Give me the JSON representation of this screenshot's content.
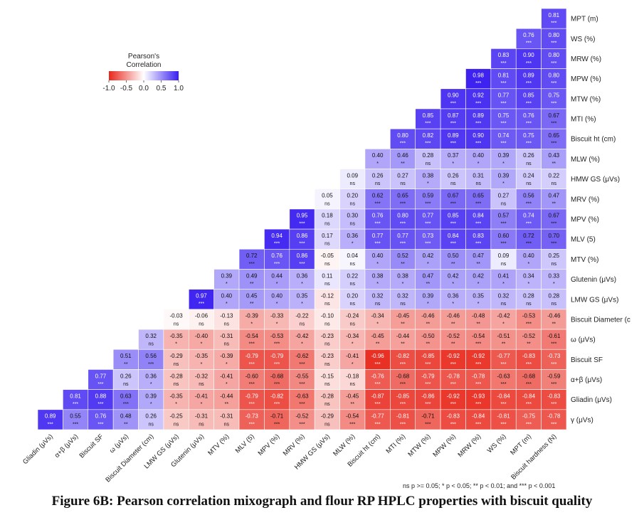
{
  "chart_data": {
    "type": "heatmap",
    "legend": {
      "title_line1": "Pearson's",
      "title_line2": "Correlation",
      "ticks": [
        "-1.0",
        "-0.5",
        "0.0",
        "0.5",
        "1.0"
      ],
      "range": [
        -1,
        1
      ],
      "colors": {
        "negative": "#e8271b",
        "neutral": "#ffffff",
        "positive": "#3a1ff0"
      }
    },
    "row_labels": [
      "MPT (m)",
      "WS (%)",
      "MRW (%)",
      "MPW (%)",
      "MTW (%)",
      "MTI (%)",
      "Biscuit ht (cm)",
      "MLW (%)",
      "HMW GS (μVs)",
      "MRV (%)",
      "MPV (%)",
      "MLV (5)",
      "MTV (%)",
      "Glutenin  (μVs)",
      "LMW GS  (μVs)",
      "Biscuit Diameter (c",
      "ω  (μVs)",
      "Biscuit SF",
      "α+β  (μVs)",
      "Gliadin  (μVs)",
      "γ  (μVs)"
    ],
    "col_labels": [
      "Gliadin  (μVs)",
      "α+β  (μVs)",
      "Biscuit SF",
      "ω  (μVs)",
      "Biscuit Diameter (cm)",
      "LMW GS  (μVs)",
      "Glutenin  (μVs)",
      "MTV (%)",
      "MLV (5)",
      "MPV (%)",
      "MRV (%)",
      "HMW GS (μVs)",
      "MLW (%)",
      "Biscuit ht (cm)",
      "MTI (%)",
      "MTW (%)",
      "MPW (%)",
      "MRW (%)",
      "WS (%)",
      "MPT (m)",
      "Biscuit hardness (N)"
    ],
    "rows": [
      {
        "values": [
          0.81
        ],
        "sig": [
          "***"
        ]
      },
      {
        "values": [
          0.76,
          0.8
        ],
        "sig": [
          "***",
          "***"
        ]
      },
      {
        "values": [
          0.83,
          0.9,
          0.8
        ],
        "sig": [
          "***",
          "***",
          "***"
        ]
      },
      {
        "values": [
          0.98,
          0.81,
          0.89,
          0.8
        ],
        "sig": [
          "***",
          "***",
          "***",
          "***"
        ]
      },
      {
        "values": [
          0.9,
          0.92,
          0.77,
          0.85,
          0.75
        ],
        "sig": [
          "***",
          "***",
          "***",
          "***",
          "***"
        ]
      },
      {
        "values": [
          0.85,
          0.87,
          0.89,
          0.75,
          0.76,
          0.67
        ],
        "sig": [
          "***",
          "***",
          "***",
          "***",
          "***",
          "***"
        ]
      },
      {
        "values": [
          0.8,
          0.82,
          0.89,
          0.9,
          0.74,
          0.75,
          0.65
        ],
        "sig": [
          "***",
          "***",
          "***",
          "***",
          "***",
          "***",
          "***"
        ]
      },
      {
        "values": [
          0.4,
          0.46,
          0.28,
          0.37,
          0.4,
          0.39,
          0.26,
          0.43
        ],
        "sig": [
          "*",
          "**",
          "ns",
          "*",
          "*",
          "*",
          "ns",
          "**"
        ]
      },
      {
        "values": [
          0.09,
          0.26,
          0.27,
          0.38,
          0.26,
          0.31,
          0.39,
          0.24,
          0.22
        ],
        "sig": [
          "ns",
          "ns",
          "ns",
          "*",
          "ns",
          "ns",
          "*",
          "ns",
          "ns"
        ]
      },
      {
        "values": [
          0.05,
          0.2,
          0.62,
          0.65,
          0.59,
          0.67,
          0.65,
          0.27,
          0.56,
          0.47
        ],
        "sig": [
          "ns",
          "ns",
          "***",
          "***",
          "***",
          "***",
          "***",
          "ns",
          "***",
          "**"
        ]
      },
      {
        "values": [
          0.95,
          0.18,
          0.3,
          0.76,
          0.8,
          0.77,
          0.85,
          0.84,
          0.57,
          0.74,
          0.67
        ],
        "sig": [
          "***",
          "ns",
          "ns",
          "***",
          "***",
          "***",
          "***",
          "***",
          "***",
          "***",
          "***"
        ]
      },
      {
        "values": [
          0.94,
          0.86,
          0.17,
          0.36,
          0.77,
          0.77,
          0.73,
          0.84,
          0.83,
          0.6,
          0.72,
          0.7
        ],
        "sig": [
          "***",
          "***",
          "ns",
          "*",
          "***",
          "***",
          "***",
          "***",
          "***",
          "***",
          "***",
          "***"
        ]
      },
      {
        "values": [
          0.72,
          0.76,
          0.86,
          -0.05,
          0.04,
          0.4,
          0.52,
          0.42,
          0.5,
          0.47,
          0.09,
          0.4,
          0.25
        ],
        "sig": [
          "***",
          "***",
          "***",
          "ns",
          "ns",
          "*",
          "**",
          "*",
          "**",
          "**",
          "ns",
          "*",
          "ns"
        ]
      },
      {
        "values": [
          0.39,
          0.49,
          0.44,
          0.36,
          0.11,
          0.22,
          0.38,
          0.38,
          0.47,
          0.42,
          0.42,
          0.41,
          0.34,
          0.33
        ],
        "sig": [
          "*",
          "**",
          "*",
          "*",
          "ns",
          "ns",
          "*",
          "*",
          "**",
          "*",
          "*",
          "*",
          "*",
          "*"
        ]
      },
      {
        "values": [
          0.97,
          0.4,
          0.45,
          0.4,
          0.35,
          -0.12,
          0.2,
          0.32,
          0.32,
          0.39,
          0.36,
          0.35,
          0.32,
          0.28,
          0.28
        ],
        "sig": [
          "***",
          "*",
          "**",
          "*",
          "*",
          "ns",
          "ns",
          "ns",
          "ns",
          "*",
          "*",
          "*",
          "ns",
          "ns",
          "ns"
        ]
      },
      {
        "values": [
          -0.03,
          -0.06,
          -0.13,
          -0.39,
          -0.33,
          -0.22,
          -0.1,
          -0.24,
          -0.34,
          -0.45,
          -0.46,
          -0.46,
          -0.48,
          -0.42,
          -0.53,
          -0.46
        ],
        "sig": [
          "ns",
          "ns",
          "ns",
          "*",
          "*",
          "ns",
          "ns",
          "ns",
          "*",
          "**",
          "**",
          "**",
          "**",
          "*",
          "***",
          "**"
        ]
      },
      {
        "values": [
          0.32,
          -0.35,
          -0.4,
          -0.31,
          -0.54,
          -0.53,
          -0.42,
          -0.23,
          -0.34,
          -0.45,
          -0.44,
          -0.5,
          -0.52,
          -0.54,
          -0.51,
          -0.52,
          -0.61
        ],
        "sig": [
          "ns",
          "*",
          "*",
          "ns",
          "***",
          "***",
          "*",
          "ns",
          "*",
          "**",
          "**",
          "**",
          "**",
          "***",
          "**",
          "**",
          "***"
        ]
      },
      {
        "values": [
          0.51,
          0.56,
          -0.29,
          -0.35,
          -0.39,
          -0.79,
          -0.79,
          -0.62,
          -0.23,
          -0.41,
          -0.96,
          -0.82,
          -0.85,
          -0.92,
          -0.92,
          -0.77,
          -0.83,
          -0.73
        ],
        "sig": [
          "**",
          "***",
          "ns",
          "*",
          "*",
          "***",
          "***",
          "***",
          "ns",
          "*",
          "***",
          "***",
          "***",
          "***",
          "***",
          "***",
          "***",
          "***"
        ]
      },
      {
        "values": [
          0.77,
          0.26,
          0.36,
          -0.28,
          -0.32,
          -0.41,
          -0.6,
          -0.68,
          -0.55,
          -0.15,
          -0.18,
          -0.76,
          -0.68,
          -0.79,
          -0.78,
          -0.78,
          -0.63,
          -0.68,
          -0.59
        ],
        "sig": [
          "***",
          "ns",
          "*",
          "ns",
          "ns",
          "*",
          "***",
          "***",
          "***",
          "ns",
          "ns",
          "***",
          "***",
          "***",
          "***",
          "***",
          "***",
          "***",
          "***"
        ]
      },
      {
        "values": [
          0.81,
          0.88,
          0.63,
          0.39,
          -0.35,
          -0.41,
          -0.44,
          -0.79,
          -0.82,
          -0.63,
          -0.28,
          -0.45,
          -0.87,
          -0.85,
          -0.86,
          -0.92,
          -0.93,
          -0.84,
          -0.84,
          -0.83
        ],
        "sig": [
          "***",
          "***",
          "***",
          "*",
          "*",
          "*",
          "**",
          "***",
          "***",
          "***",
          "ns",
          "**",
          "***",
          "***",
          "***",
          "***",
          "***",
          "***",
          "***",
          "***"
        ]
      },
      {
        "values": [
          0.89,
          0.55,
          0.76,
          0.48,
          0.26,
          -0.25,
          -0.31,
          -0.31,
          -0.73,
          -0.71,
          -0.52,
          -0.29,
          -0.54,
          -0.77,
          -0.81,
          -0.71,
          -0.83,
          -0.84,
          -0.81,
          -0.75,
          -0.78
        ],
        "sig": [
          "***",
          "***",
          "***",
          "**",
          "ns",
          "ns",
          "ns",
          "ns",
          "***",
          "***",
          "***",
          "ns",
          "***",
          "***",
          "***",
          "***",
          "***",
          "***",
          "***",
          "***",
          "***"
        ]
      }
    ]
  },
  "footnote": "ns p >= 0.05; * p < 0.05; ** p < 0.01; and *** p < 0.001",
  "caption": "Figure 6B: Pearson correlation mixograph and flour RP HPLC properties with biscuit quality"
}
